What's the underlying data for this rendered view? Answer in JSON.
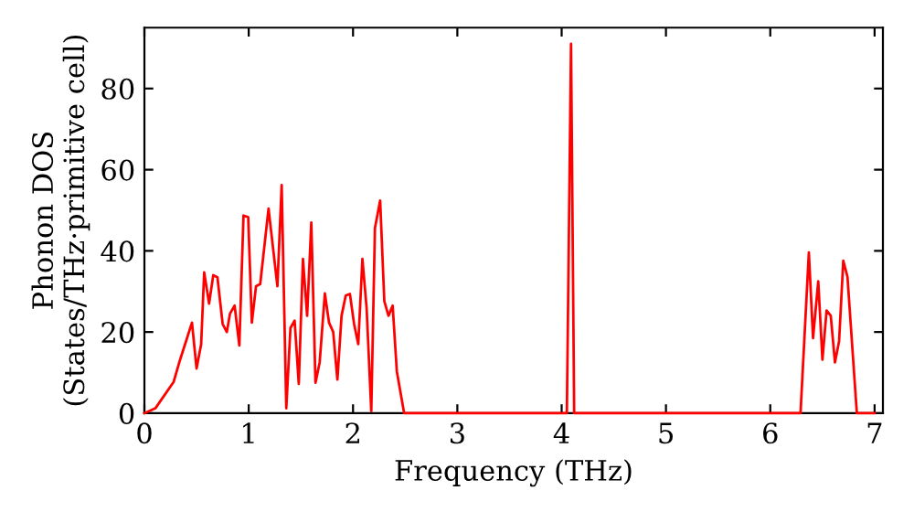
{
  "chart_data": {
    "type": "line",
    "xlabel": "Frequency (THz)",
    "ylabel": "Phonon DOS\n(States/THz·primitive cell)",
    "x": [
      0,
      0.105,
      0.28,
      0.34,
      0.456,
      0.5,
      0.544,
      0.573,
      0.62,
      0.66,
      0.7,
      0.75,
      0.79,
      0.82,
      0.865,
      0.91,
      0.95,
      0.995,
      1.03,
      1.07,
      1.11,
      1.19,
      1.275,
      1.316,
      1.36,
      1.4,
      1.44,
      1.48,
      1.52,
      1.56,
      1.6,
      1.64,
      1.68,
      1.73,
      1.77,
      1.81,
      1.85,
      1.89,
      1.93,
      1.97,
      2.01,
      2.05,
      2.09,
      2.13,
      2.175,
      2.21,
      2.26,
      2.3,
      2.34,
      2.38,
      2.42,
      2.49,
      4.05,
      4.09,
      4.12,
      6.29,
      6.37,
      6.41,
      6.46,
      6.5,
      6.54,
      6.58,
      6.62,
      6.66,
      6.7,
      6.74,
      6.83,
      7.0
    ],
    "series": [
      {
        "color": "#ff0000",
        "values": [
          0,
          1.2,
          7.7,
          13,
          22.3,
          11,
          17,
          34.7,
          27,
          34,
          33.5,
          22,
          20,
          24.5,
          26.5,
          16.7,
          48.7,
          48.3,
          22.3,
          31.3,
          31.8,
          50.4,
          31.3,
          56.2,
          1.2,
          21,
          22.8,
          7.2,
          38,
          24,
          47,
          7.5,
          12.5,
          29.5,
          22.3,
          20,
          8.3,
          24,
          29,
          29.4,
          22,
          17,
          38,
          26,
          0.5,
          45.6,
          52.4,
          27.6,
          24,
          26.5,
          10.3,
          0,
          0,
          91,
          0,
          0,
          39.6,
          18.5,
          32.5,
          13.2,
          25.3,
          24,
          12.5,
          17.8,
          37.6,
          33.6,
          0,
          0
        ]
      }
    ],
    "xlim": [
      0,
      7.08
    ],
    "ylim": [
      0,
      95
    ],
    "xticks": [
      0,
      1,
      2,
      3,
      4,
      5,
      6,
      7
    ],
    "yticks": [
      0,
      20,
      40,
      60,
      80
    ],
    "grid": false,
    "marker": "none",
    "line_style": "solid"
  }
}
